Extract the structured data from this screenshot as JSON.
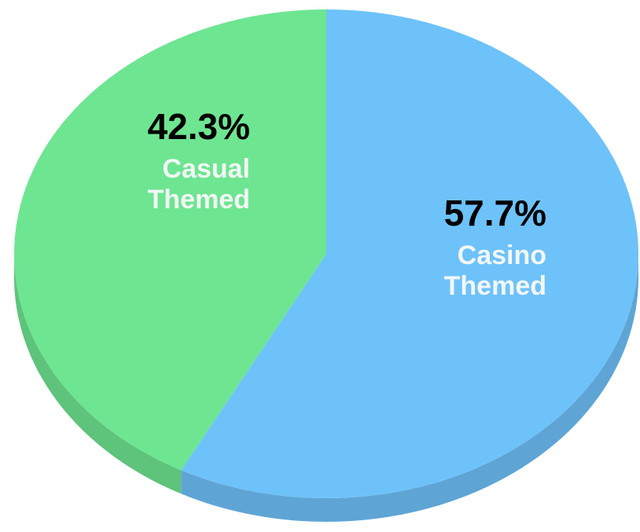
{
  "chart_data": {
    "type": "pie",
    "categories": [
      "Casino Themed",
      "Casual Themed"
    ],
    "values": [
      57.7,
      42.3
    ],
    "value_labels": [
      "57.7%",
      "42.3%"
    ],
    "colors": [
      "#6ec2fa",
      "#6ee591"
    ]
  }
}
